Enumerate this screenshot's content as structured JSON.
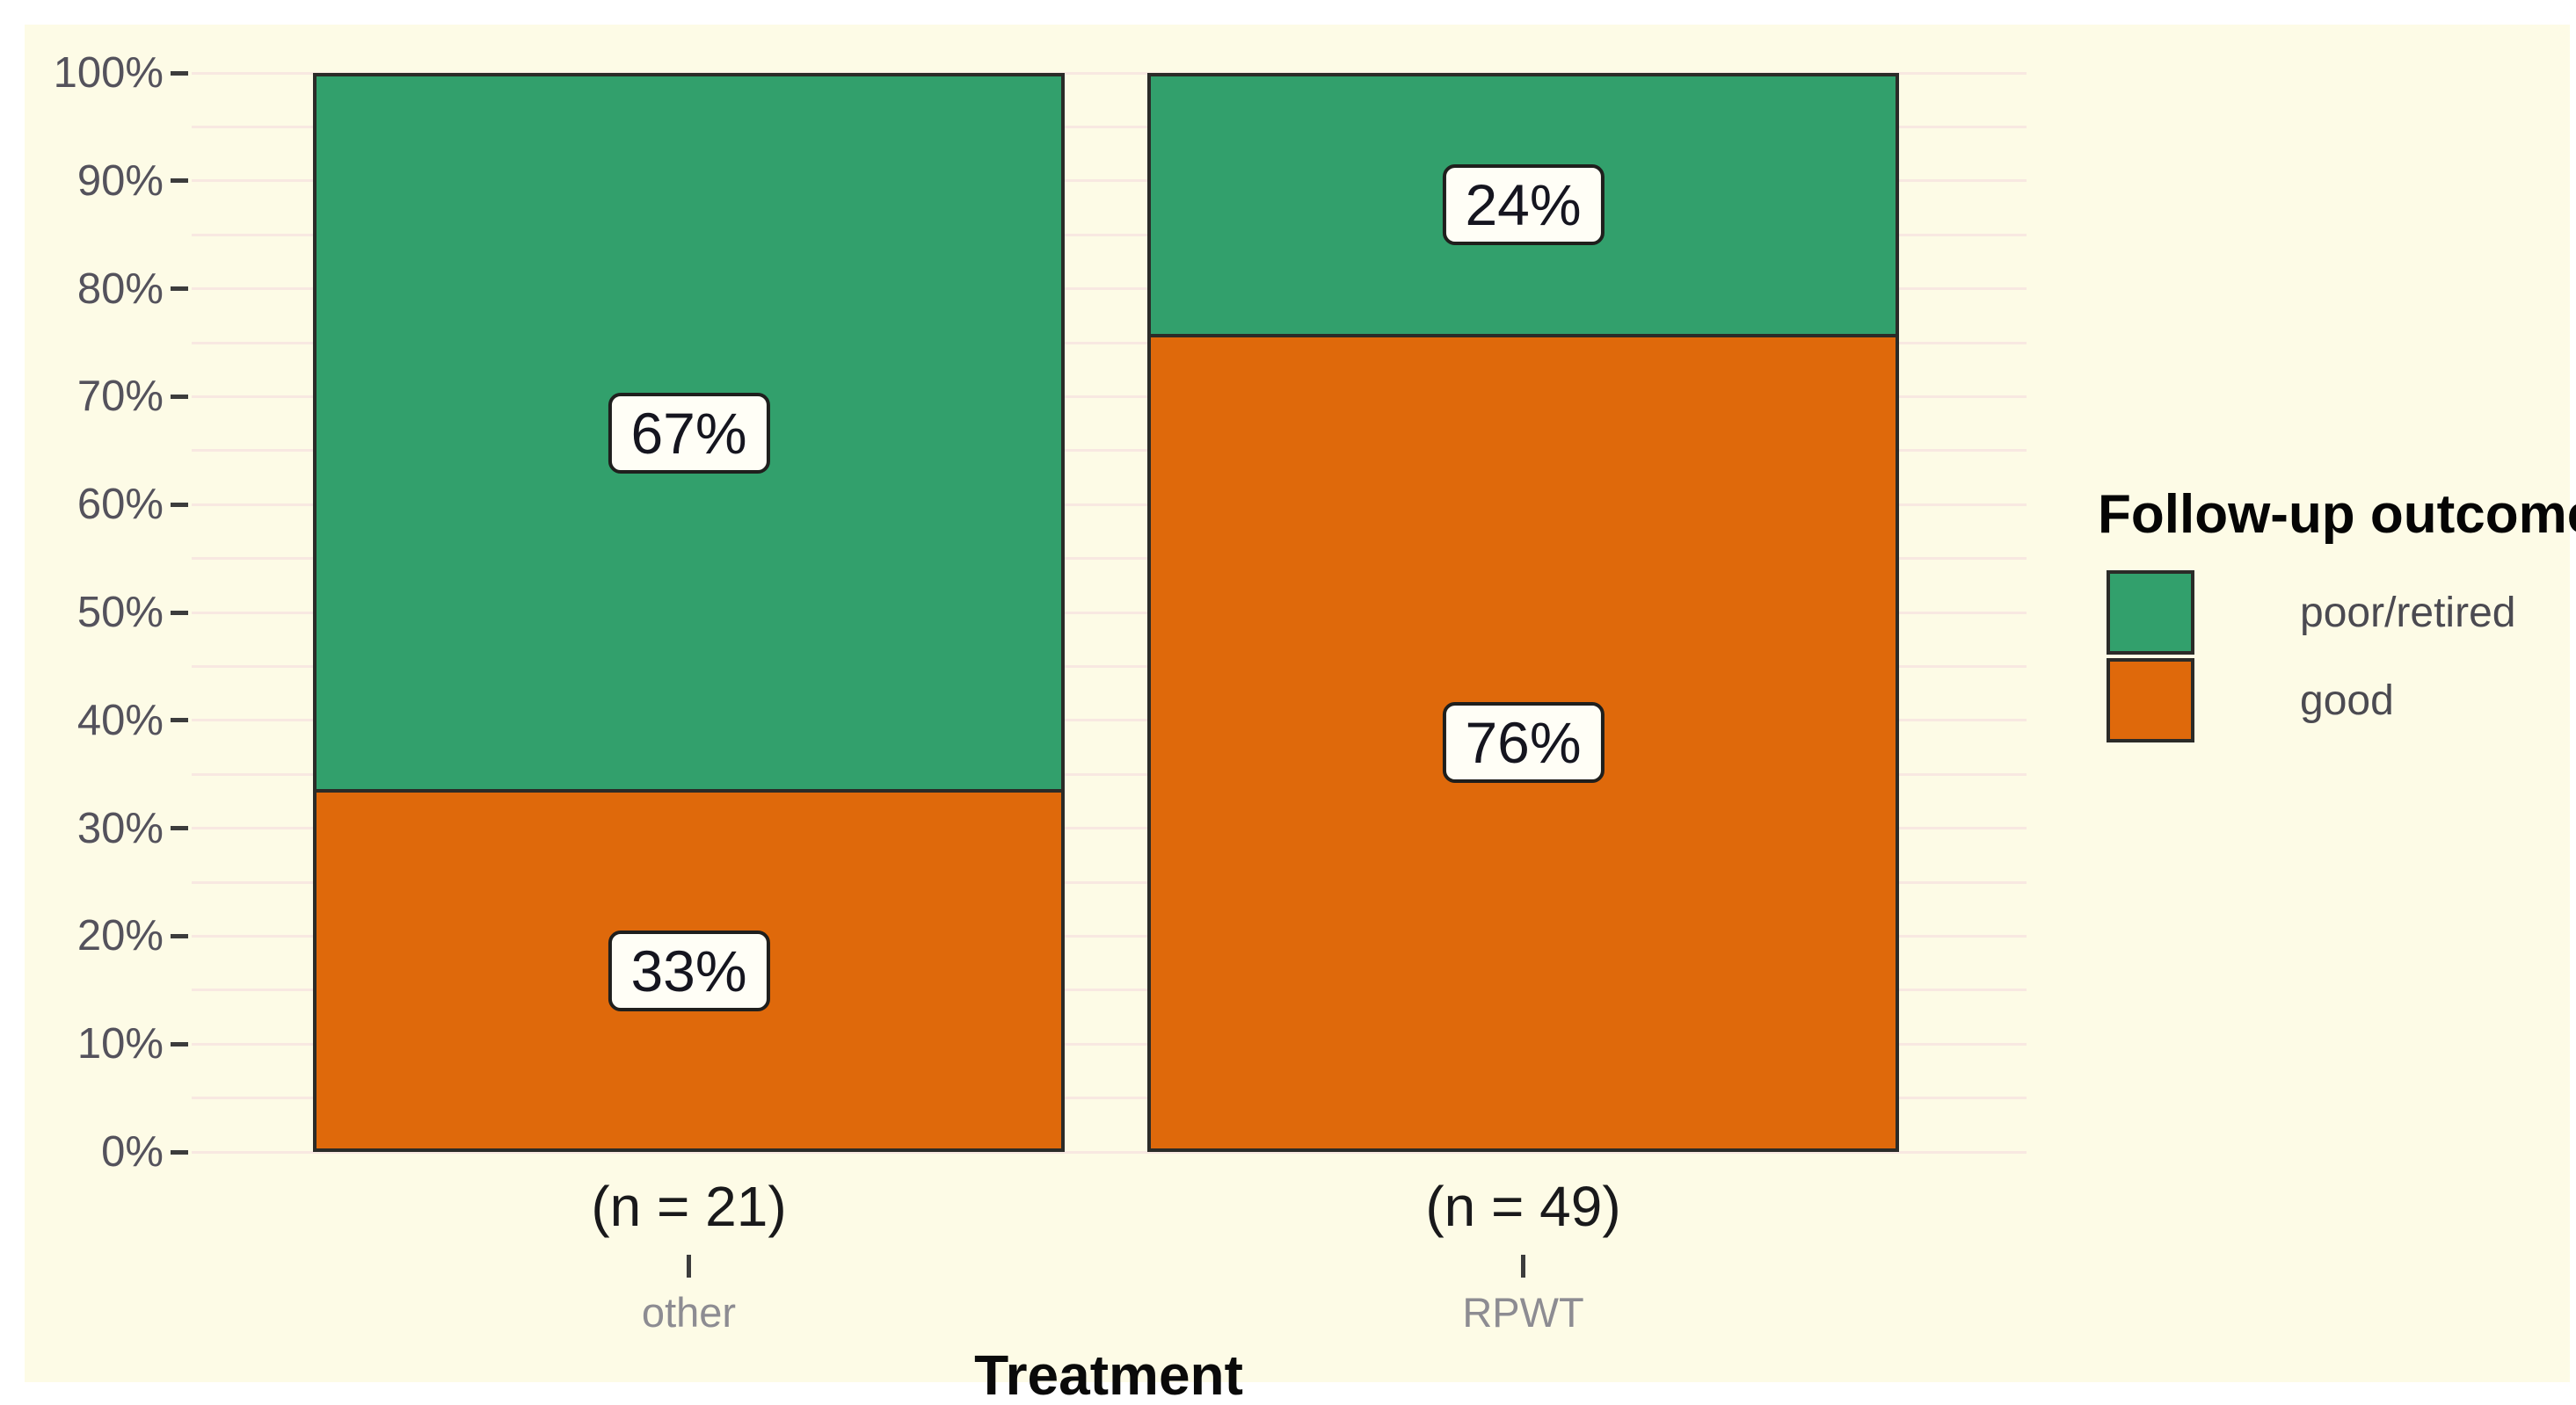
{
  "figure": {
    "page_background": "#FFFFFF",
    "canvas_background": "#FDFBE6",
    "gridline_color": "#F8E8E1",
    "tick_color": "#3c3c3c",
    "axis_label_color": "#54525c"
  },
  "chart_data": {
    "type": "bar",
    "stacked": true,
    "percent": true,
    "title": "",
    "xlabel": "Treatment",
    "ylabel": "",
    "legend_position": "right",
    "grid": true,
    "categories": [
      {
        "name": "other",
        "n_label": "(n = 21)",
        "n": 21
      },
      {
        "name": "RPWT",
        "n_label": "(n = 49)",
        "n": 49
      }
    ],
    "series": [
      {
        "name": "poor/retired",
        "color": "#32A06C",
        "values_pct": [
          66.7,
          24.5
        ],
        "labels": [
          "67%",
          "24%"
        ]
      },
      {
        "name": "good",
        "color": "#DF690B",
        "values_pct": [
          33.3,
          75.5
        ],
        "labels": [
          "33%",
          "76%"
        ]
      }
    ],
    "y_axis": {
      "min": 0,
      "max": 100,
      "tick_step_pct": 10,
      "gridline_step_pct": 5,
      "tick_labels": [
        "0%",
        "10%",
        "20%",
        "30%",
        "40%",
        "50%",
        "60%",
        "70%",
        "80%",
        "90%",
        "100%"
      ]
    },
    "legend": {
      "title": "Follow-up outcome",
      "entries": [
        {
          "label": "poor/retired",
          "color": "#32A06C"
        },
        {
          "label": "good",
          "color": "#DF690B"
        }
      ]
    }
  }
}
